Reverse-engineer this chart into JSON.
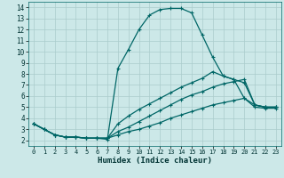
{
  "xlabel": "Humidex (Indice chaleur)",
  "bg_color": "#cce8e8",
  "grid_color": "#aacccc",
  "line_color": "#006666",
  "xlim": [
    -0.5,
    23.5
  ],
  "ylim": [
    1.5,
    14.5
  ],
  "xticks": [
    0,
    1,
    2,
    3,
    4,
    5,
    6,
    7,
    8,
    9,
    10,
    11,
    12,
    13,
    14,
    15,
    16,
    17,
    18,
    19,
    20,
    21,
    22,
    23
  ],
  "yticks": [
    2,
    3,
    4,
    5,
    6,
    7,
    8,
    9,
    10,
    11,
    12,
    13,
    14
  ],
  "series1_x": [
    0,
    1,
    2,
    3,
    4,
    5,
    6,
    7,
    8,
    9,
    10,
    11,
    12,
    13,
    14,
    15,
    16,
    17,
    18,
    19,
    20,
    21,
    22,
    23
  ],
  "series1_y": [
    3.5,
    3.0,
    2.5,
    2.3,
    2.3,
    2.2,
    2.2,
    2.1,
    8.5,
    10.2,
    12.0,
    13.3,
    13.8,
    13.9,
    13.9,
    13.5,
    11.5,
    9.5,
    7.8,
    7.5,
    5.8,
    5.2,
    5.0,
    5.0
  ],
  "series2_x": [
    0,
    1,
    2,
    3,
    4,
    5,
    6,
    7,
    8,
    9,
    10,
    11,
    12,
    13,
    14,
    15,
    16,
    17,
    18,
    19,
    20,
    21,
    22,
    23
  ],
  "series2_y": [
    3.5,
    3.0,
    2.5,
    2.3,
    2.3,
    2.2,
    2.2,
    2.2,
    3.5,
    4.2,
    4.8,
    5.3,
    5.8,
    6.3,
    6.8,
    7.2,
    7.6,
    8.2,
    7.8,
    7.5,
    7.2,
    5.2,
    5.0,
    5.0
  ],
  "series3_x": [
    0,
    1,
    2,
    3,
    4,
    5,
    6,
    7,
    8,
    9,
    10,
    11,
    12,
    13,
    14,
    15,
    16,
    17,
    18,
    19,
    20,
    21,
    22,
    23
  ],
  "series3_y": [
    3.5,
    3.0,
    2.5,
    2.3,
    2.3,
    2.2,
    2.2,
    2.2,
    2.8,
    3.2,
    3.7,
    4.2,
    4.7,
    5.2,
    5.7,
    6.1,
    6.4,
    6.8,
    7.1,
    7.3,
    7.5,
    5.2,
    5.0,
    5.0
  ],
  "series4_x": [
    0,
    1,
    2,
    3,
    4,
    5,
    6,
    7,
    8,
    9,
    10,
    11,
    12,
    13,
    14,
    15,
    16,
    17,
    18,
    19,
    20,
    21,
    22,
    23
  ],
  "series4_y": [
    3.5,
    3.0,
    2.5,
    2.3,
    2.3,
    2.2,
    2.2,
    2.2,
    2.5,
    2.8,
    3.0,
    3.3,
    3.6,
    4.0,
    4.3,
    4.6,
    4.9,
    5.2,
    5.4,
    5.6,
    5.8,
    5.0,
    4.9,
    4.9
  ]
}
